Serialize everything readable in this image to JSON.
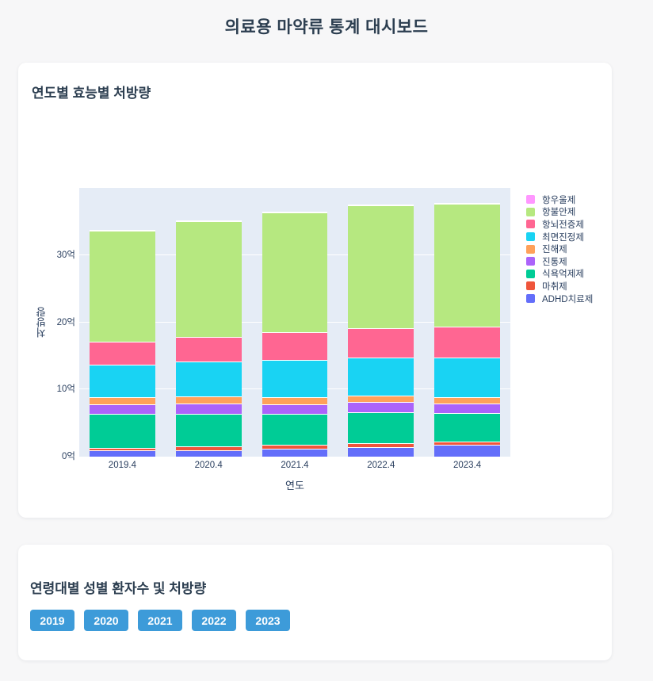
{
  "page": {
    "title": "의료용 마약류 통계 대시보드",
    "background_color": "#F7F7F8",
    "title_color": "#2C3E50"
  },
  "section1": {
    "title": "연도별 효능별 처방량"
  },
  "chart_data": {
    "type": "bar",
    "stacked": true,
    "title": "연도별 효능별 처방량",
    "categories": [
      "2019.4",
      "2020.4",
      "2021.4",
      "2022.4",
      "2023.4"
    ],
    "series": [
      {
        "name": "ADHD치료제",
        "color": "#636EFA",
        "values": [
          0.9,
          1.0,
          1.2,
          1.45,
          1.8
        ]
      },
      {
        "name": "마취제",
        "color": "#EF553B",
        "values": [
          0.45,
          0.5,
          0.55,
          0.5,
          0.45
        ]
      },
      {
        "name": "식욕억제제",
        "color": "#00CC96",
        "values": [
          5.0,
          4.9,
          4.6,
          4.7,
          4.3
        ]
      },
      {
        "name": "진통제",
        "color": "#AB63FA",
        "values": [
          1.45,
          1.5,
          1.45,
          1.45,
          1.35
        ]
      },
      {
        "name": "진해제",
        "color": "#FFA15A",
        "values": [
          1.05,
          1.1,
          1.1,
          0.95,
          1.0
        ]
      },
      {
        "name": "최면진정제",
        "color": "#19D3F3",
        "values": [
          4.85,
          5.2,
          5.5,
          5.65,
          5.9
        ]
      },
      {
        "name": "항뇌전증제",
        "color": "#FF6692",
        "values": [
          3.4,
          3.6,
          4.1,
          4.4,
          4.6
        ]
      },
      {
        "name": "항불안제",
        "color": "#B6E880",
        "values": [
          16.5,
          17.2,
          17.9,
          18.3,
          18.3
        ]
      },
      {
        "name": "항우울제",
        "color": "#FF97FF",
        "values": [
          0.05,
          0.05,
          0.05,
          0.05,
          0.05
        ]
      }
    ],
    "xlabel": "연도",
    "ylabel": "처방량",
    "ylim": [
      0,
      40
    ],
    "yticks": [
      {
        "value": 0,
        "label": "0억"
      },
      {
        "value": 10,
        "label": "10억"
      },
      {
        "value": 20,
        "label": "20억"
      },
      {
        "value": 30,
        "label": "30억"
      }
    ],
    "legend_position": "right",
    "legend_order": "reversed-from-stack (top of stack listed first)",
    "grid": "on",
    "plot_bg": "#E5ECF6",
    "grid_color": "#FFFFFF",
    "font_color": "#2A3F5F"
  },
  "section2": {
    "title": "연령대별 성별 환자수 및 처방량",
    "years": [
      "2019",
      "2020",
      "2021",
      "2022",
      "2023"
    ]
  },
  "colors": {
    "button_blue": "#3D9BD9",
    "card_bg": "#FFFFFF"
  }
}
